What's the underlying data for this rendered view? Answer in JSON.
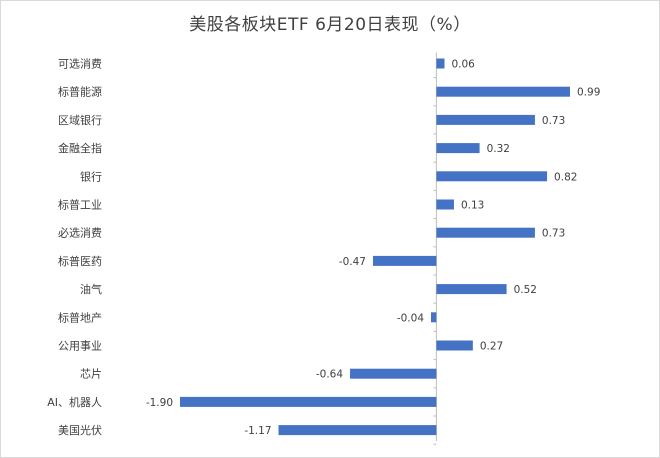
{
  "chart_data": {
    "type": "bar",
    "orientation": "horizontal",
    "title": "美股各板块ETF 6月20日表现（%）",
    "categories": [
      "可选消费",
      "标普能源",
      "区域银行",
      "金融全指",
      "银行",
      "标普工业",
      "必选消费",
      "标普医药",
      "油气",
      "标普地产",
      "公用事业",
      "芯片",
      "AI、机器人",
      "美国光伏"
    ],
    "values": [
      0.06,
      0.99,
      0.73,
      0.32,
      0.82,
      0.13,
      0.73,
      -0.47,
      0.52,
      -0.04,
      0.27,
      -0.64,
      -1.9,
      -1.17
    ],
    "labels": [
      "0.06",
      "0.99",
      "0.73",
      "0.32",
      "0.82",
      "0.13",
      "0.73",
      "-0.47",
      "0.52",
      "-0.04",
      "0.27",
      "-0.64",
      "-1.90",
      "-1.17"
    ],
    "xlim": [
      -1.9,
      0.99
    ],
    "bar_color": "#4472c4",
    "grid": false,
    "legend": "none"
  }
}
